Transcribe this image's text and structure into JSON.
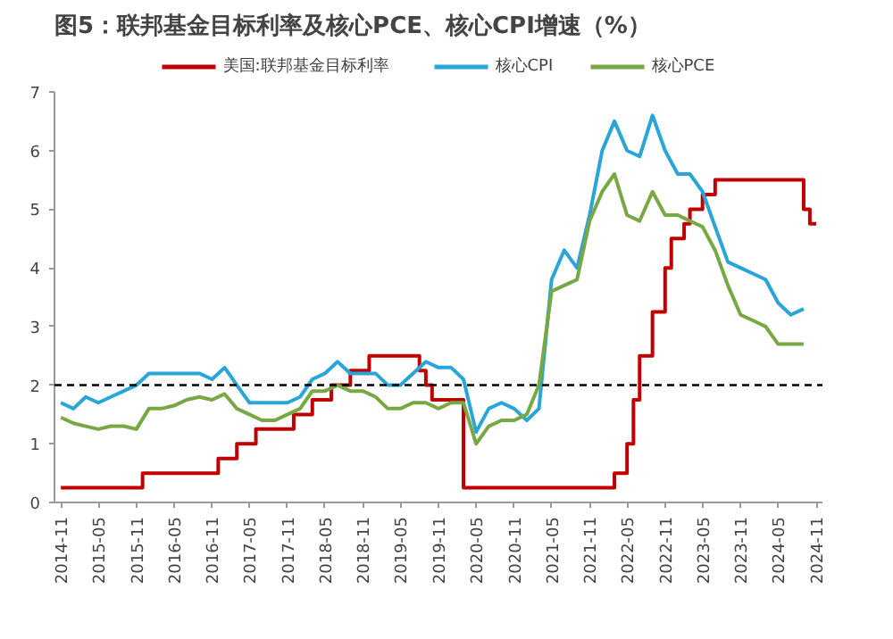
{
  "chart_data": {
    "type": "line",
    "title": "图5：联邦基金目标利率及核心PCE、核心CPI增速（%）",
    "xlim": [
      "2014-10",
      "2024-12"
    ],
    "ylim": [
      0,
      7
    ],
    "yticks": [
      0,
      1,
      2,
      3,
      4,
      5,
      6,
      7
    ],
    "xticks": [
      "2014-11",
      "2015-05",
      "2015-11",
      "2016-05",
      "2016-11",
      "2017-05",
      "2017-11",
      "2018-05",
      "2018-11",
      "2019-05",
      "2019-11",
      "2020-05",
      "2020-11",
      "2021-05",
      "2021-11",
      "2022-05",
      "2022-11",
      "2023-05",
      "2023-11",
      "2024-05",
      "2024-11"
    ],
    "grid": false,
    "legend": "top",
    "line_style": "solid",
    "marker": "none",
    "ref_lines": [
      {
        "axis": "y",
        "value": 2,
        "color": "#000000",
        "line_style": "dashed"
      }
    ],
    "series": [
      {
        "name": "美国:联邦基金目标利率",
        "type": "step",
        "color": "#c00000",
        "x": [
          "2014-11",
          "2015-12",
          "2016-12",
          "2017-03",
          "2017-06",
          "2017-12",
          "2018-03",
          "2018-06",
          "2018-09",
          "2018-12",
          "2019-08",
          "2019-09",
          "2019-10",
          "2020-03",
          "2022-03",
          "2022-05",
          "2022-06",
          "2022-07",
          "2022-09",
          "2022-11",
          "2022-12",
          "2023-02",
          "2023-03",
          "2023-05",
          "2023-07",
          "2024-09",
          "2024-10",
          "2024-11"
        ],
        "values": [
          0.25,
          0.5,
          0.75,
          1.0,
          1.25,
          1.5,
          1.75,
          2.0,
          2.25,
          2.5,
          2.25,
          2.0,
          1.75,
          0.25,
          0.5,
          1.0,
          1.75,
          2.5,
          3.25,
          4.0,
          4.5,
          4.75,
          5.0,
          5.25,
          5.5,
          5.0,
          4.75,
          4.75
        ]
      },
      {
        "name": "核心CPI",
        "color": "#2aa5d8",
        "x": [
          "2014-11",
          "2015-01",
          "2015-03",
          "2015-05",
          "2015-07",
          "2015-09",
          "2015-11",
          "2016-01",
          "2016-03",
          "2016-05",
          "2016-07",
          "2016-09",
          "2016-11",
          "2017-01",
          "2017-03",
          "2017-05",
          "2017-07",
          "2017-09",
          "2017-11",
          "2018-01",
          "2018-03",
          "2018-05",
          "2018-07",
          "2018-09",
          "2018-11",
          "2019-01",
          "2019-03",
          "2019-05",
          "2019-07",
          "2019-09",
          "2019-11",
          "2020-01",
          "2020-03",
          "2020-05",
          "2020-07",
          "2020-09",
          "2020-11",
          "2021-01",
          "2021-03",
          "2021-05",
          "2021-07",
          "2021-09",
          "2021-11",
          "2022-01",
          "2022-03",
          "2022-05",
          "2022-07",
          "2022-09",
          "2022-11",
          "2023-01",
          "2023-03",
          "2023-05",
          "2023-07",
          "2023-09",
          "2023-11",
          "2024-01",
          "2024-03",
          "2024-05",
          "2024-07",
          "2024-09"
        ],
        "values": [
          1.7,
          1.6,
          1.8,
          1.7,
          1.8,
          1.9,
          2.0,
          2.2,
          2.2,
          2.2,
          2.2,
          2.2,
          2.1,
          2.3,
          2.0,
          1.7,
          1.7,
          1.7,
          1.7,
          1.8,
          2.1,
          2.2,
          2.4,
          2.2,
          2.2,
          2.2,
          2.0,
          2.0,
          2.2,
          2.4,
          2.3,
          2.3,
          2.1,
          1.2,
          1.6,
          1.7,
          1.6,
          1.4,
          1.6,
          3.8,
          4.3,
          4.0,
          4.9,
          6.0,
          6.5,
          6.0,
          5.9,
          6.6,
          6.0,
          5.6,
          5.6,
          5.3,
          4.7,
          4.1,
          4.0,
          3.9,
          3.8,
          3.4,
          3.2,
          3.3
        ]
      },
      {
        "name": "核心PCE",
        "color": "#77a844",
        "x": [
          "2014-11",
          "2015-01",
          "2015-03",
          "2015-05",
          "2015-07",
          "2015-09",
          "2015-11",
          "2016-01",
          "2016-03",
          "2016-05",
          "2016-07",
          "2016-09",
          "2016-11",
          "2017-01",
          "2017-03",
          "2017-05",
          "2017-07",
          "2017-09",
          "2017-11",
          "2018-01",
          "2018-03",
          "2018-05",
          "2018-07",
          "2018-09",
          "2018-11",
          "2019-01",
          "2019-03",
          "2019-05",
          "2019-07",
          "2019-09",
          "2019-11",
          "2020-01",
          "2020-03",
          "2020-05",
          "2020-07",
          "2020-09",
          "2020-11",
          "2021-01",
          "2021-03",
          "2021-05",
          "2021-07",
          "2021-09",
          "2021-11",
          "2022-01",
          "2022-03",
          "2022-05",
          "2022-07",
          "2022-09",
          "2022-11",
          "2023-01",
          "2023-03",
          "2023-05",
          "2023-07",
          "2023-09",
          "2023-11",
          "2024-01",
          "2024-03",
          "2024-05",
          "2024-07",
          "2024-09"
        ],
        "values": [
          1.45,
          1.35,
          1.3,
          1.25,
          1.3,
          1.3,
          1.25,
          1.6,
          1.6,
          1.65,
          1.75,
          1.8,
          1.75,
          1.85,
          1.6,
          1.5,
          1.4,
          1.4,
          1.5,
          1.6,
          1.9,
          1.9,
          2.0,
          1.9,
          1.9,
          1.8,
          1.6,
          1.6,
          1.7,
          1.7,
          1.6,
          1.7,
          1.7,
          1.0,
          1.3,
          1.4,
          1.4,
          1.5,
          2.0,
          3.6,
          3.7,
          3.8,
          4.8,
          5.3,
          5.6,
          4.9,
          4.8,
          5.3,
          4.9,
          4.9,
          4.8,
          4.7,
          4.3,
          3.7,
          3.2,
          3.1,
          3.0,
          2.7,
          2.7,
          2.7
        ]
      }
    ]
  }
}
